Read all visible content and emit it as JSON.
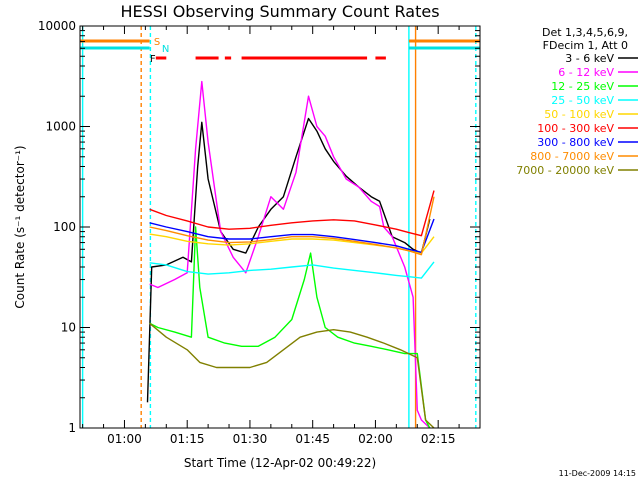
{
  "chart_data": {
    "type": "line",
    "title": "HESSI Observing Summary Count Rates",
    "xlabel": "Start Time (12-Apr-02 00:49:22)",
    "ylabel": "Count Rate (s⁻¹ detector⁻¹)",
    "x_tick_labels": [
      "01:00",
      "01:15",
      "01:30",
      "01:45",
      "02:00",
      "02:15"
    ],
    "x_tick_values_min": [
      60,
      75,
      90,
      105,
      120,
      135
    ],
    "xlim_min": [
      49.37,
      145
    ],
    "y_scale": "log",
    "ylim": [
      1,
      10000
    ],
    "y_tick_labels": [
      "1",
      "10",
      "100",
      "1000",
      "10000"
    ],
    "legend_header": [
      "Det 1,3,4,5,6,9,",
      "FDecim 1, Att 0"
    ],
    "legend_position": "right-outside",
    "series": [
      {
        "name": "3 - 6 keV",
        "color": "#000000",
        "x": [
          65.5,
          66.5,
          70,
          74,
          76,
          77.5,
          78.5,
          80,
          83,
          86,
          89,
          92,
          95,
          98,
          101,
          104,
          106,
          108,
          110,
          113,
          116,
          119,
          121,
          122.5,
          124,
          127,
          129,
          131,
          133
        ],
        "y": [
          1.8,
          40,
          42,
          50,
          45,
          400,
          1100,
          300,
          90,
          60,
          55,
          100,
          150,
          200,
          500,
          1200,
          900,
          600,
          450,
          320,
          250,
          200,
          180,
          120,
          80,
          70,
          60,
          55,
          120
        ]
      },
      {
        "name": "6 - 12 keV",
        "color": "#ff00ff",
        "x": [
          66,
          68,
          72,
          75,
          77,
          78.5,
          80,
          83,
          86,
          89,
          92,
          95,
          98,
          101,
          104,
          106,
          108,
          110,
          113,
          116,
          119,
          121,
          122,
          124,
          127,
          129,
          130,
          131,
          133
        ],
        "y": [
          27,
          25,
          30,
          35,
          600,
          2800,
          700,
          90,
          50,
          35,
          80,
          200,
          150,
          350,
          2000,
          1000,
          800,
          500,
          300,
          250,
          180,
          160,
          100,
          80,
          40,
          20,
          1.5,
          1.2,
          1
        ]
      },
      {
        "name": "12 - 25 keV",
        "color": "#00ff00",
        "x": [
          66,
          68,
          72,
          76,
          77,
          78,
          80,
          84,
          88,
          92,
          96,
          100,
          103,
          104.5,
          106,
          108,
          111,
          115,
          119,
          123,
          127,
          130,
          132,
          133
        ],
        "y": [
          11,
          10,
          9,
          8,
          100,
          25,
          8,
          7,
          6.5,
          6.5,
          8,
          12,
          30,
          55,
          20,
          10,
          8,
          7,
          6.5,
          6,
          5.5,
          5.5,
          1.2,
          1
        ]
      },
      {
        "name": "25 - 50 keV",
        "color": "#00ffff",
        "x": [
          66,
          70,
          75,
          80,
          85,
          90,
          95,
          100,
          105,
          110,
          115,
          120,
          125,
          128,
          131,
          134
        ],
        "y": [
          44,
          42,
          36,
          34,
          35,
          37,
          38,
          40,
          42,
          39,
          37,
          35,
          33,
          32,
          31,
          45
        ]
      },
      {
        "name": "50 - 100 keV",
        "color": "#ffd700",
        "x": [
          66,
          70,
          75,
          80,
          85,
          90,
          95,
          100,
          105,
          110,
          115,
          120,
          125,
          128,
          131,
          134
        ],
        "y": [
          85,
          80,
          72,
          68,
          66,
          68,
          72,
          76,
          76,
          74,
          70,
          66,
          62,
          58,
          55,
          80
        ]
      },
      {
        "name": "100 - 300 keV",
        "color": "#ff0000",
        "x": [
          66,
          70,
          75,
          80,
          85,
          90,
          95,
          100,
          105,
          110,
          115,
          120,
          125,
          128,
          131,
          134
        ],
        "y": [
          150,
          130,
          115,
          100,
          95,
          97,
          104,
          110,
          115,
          118,
          115,
          105,
          95,
          88,
          82,
          230
        ]
      },
      {
        "name": "300 - 800 keV",
        "color": "#0000ff",
        "x": [
          66,
          70,
          75,
          80,
          85,
          90,
          95,
          100,
          105,
          110,
          115,
          120,
          125,
          128,
          131,
          134
        ],
        "y": [
          110,
          100,
          90,
          80,
          76,
          76,
          80,
          84,
          84,
          80,
          75,
          70,
          65,
          60,
          56,
          120
        ]
      },
      {
        "name": "800 - 7000 keV",
        "color": "#ff8c00",
        "x": [
          66,
          70,
          75,
          80,
          85,
          90,
          95,
          100,
          105,
          110,
          115,
          120,
          125,
          128,
          131,
          134
        ],
        "y": [
          100,
          92,
          82,
          74,
          70,
          71,
          75,
          80,
          80,
          77,
          72,
          67,
          62,
          58,
          53,
          200
        ]
      },
      {
        "name": "7000 - 20000 keV",
        "color": "#808000",
        "x": [
          66,
          70,
          75,
          78,
          82,
          86,
          90,
          94,
          98,
          102,
          106,
          110,
          114,
          118,
          122,
          126,
          130,
          132,
          134
        ],
        "y": [
          11,
          8,
          6,
          4.5,
          4,
          4,
          4,
          4.5,
          6,
          8,
          9,
          9.5,
          9,
          8,
          7,
          6,
          5,
          1.2,
          1
        ]
      }
    ],
    "flag_labels": {
      "s": "S",
      "n": "N",
      "f": "F"
    },
    "flag_colors": {
      "s": "#ff8000",
      "n": "#00e0e0",
      "f": "#ff0000"
    },
    "saa_segments_min": [
      [
        49.37,
        66
      ],
      [
        128,
        145
      ]
    ],
    "night_segments_min": [
      [
        49.37,
        66
      ],
      [
        128,
        145
      ]
    ],
    "flare_segments_min": [
      [
        67.5,
        70
      ],
      [
        77,
        82.5
      ],
      [
        84,
        85.5
      ],
      [
        88,
        118
      ],
      [
        120,
        122.5
      ]
    ],
    "vertical_markers": [
      {
        "x": 50,
        "color": "#00ffff",
        "style": "solid"
      },
      {
        "x": 64,
        "color": "#ff8000",
        "style": "dashed"
      },
      {
        "x": 66.2,
        "color": "#00ffff",
        "style": "dashed"
      },
      {
        "x": 128,
        "color": "#00ffff",
        "style": "solid"
      },
      {
        "x": 129.6,
        "color": "#ff8000",
        "style": "solid"
      },
      {
        "x": 144,
        "color": "#00ffff",
        "style": "dashed"
      }
    ]
  },
  "stamp": "11-Dec-2009 14:15"
}
